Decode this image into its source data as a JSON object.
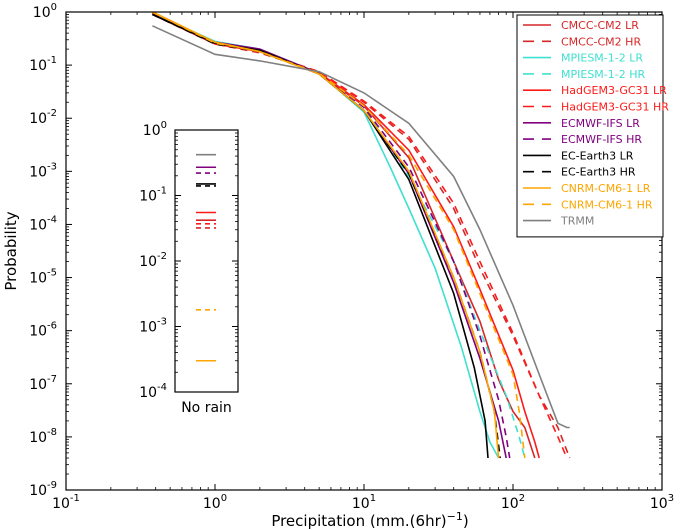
{
  "chart_data": {
    "type": "line",
    "title": "",
    "xlabel": "Precipitation (mm.(6hr)",
    "xlabel_exp": "−1",
    "xlabel_close": ")",
    "ylabel": "Probability",
    "xscale": "log",
    "yscale": "log",
    "xlim": [
      0.1,
      1000
    ],
    "ylim": [
      1e-09,
      1
    ],
    "x_ticks": [
      {
        "value": 0.1,
        "base": "10",
        "exp": "-1"
      },
      {
        "value": 1,
        "base": "10",
        "exp": "0"
      },
      {
        "value": 10,
        "base": "10",
        "exp": "1"
      },
      {
        "value": 100,
        "base": "10",
        "exp": "2"
      },
      {
        "value": 1000,
        "base": "10",
        "exp": "3"
      }
    ],
    "y_ticks": [
      {
        "value": 1,
        "base": "10",
        "exp": "0"
      },
      {
        "value": 0.1,
        "base": "10",
        "exp": "-1"
      },
      {
        "value": 0.01,
        "base": "10",
        "exp": "-2"
      },
      {
        "value": 0.001,
        "base": "10",
        "exp": "-3"
      },
      {
        "value": 0.0001,
        "base": "10",
        "exp": "-4"
      },
      {
        "value": 1e-05,
        "base": "10",
        "exp": "-5"
      },
      {
        "value": 1e-06,
        "base": "10",
        "exp": "-6"
      },
      {
        "value": 1e-07,
        "base": "10",
        "exp": "-7"
      },
      {
        "value": 1e-08,
        "base": "10",
        "exp": "-8"
      },
      {
        "value": 1e-09,
        "base": "10",
        "exp": "-9"
      }
    ],
    "legend_position": "top-right",
    "series": [
      {
        "name": "CMCC-CM2 LR",
        "color": "#d62728",
        "dash": "solid",
        "points": [
          [
            0.38,
            1.0
          ],
          [
            1,
            0.27
          ],
          [
            2,
            0.18
          ],
          [
            5,
            0.07
          ],
          [
            10,
            0.017
          ],
          [
            20,
            0.0018
          ],
          [
            40,
            2e-05
          ],
          [
            60,
            1.5e-06
          ],
          [
            80,
            1.2e-07
          ],
          [
            100,
            3e-08
          ],
          [
            120,
            1.5e-08
          ],
          [
            140,
            4e-09
          ]
        ]
      },
      {
        "name": "CMCC-CM2 HR",
        "color": "#d62728",
        "dash": "dashed",
        "points": [
          [
            0.38,
            1.0
          ],
          [
            1,
            0.25
          ],
          [
            2,
            0.17
          ],
          [
            5,
            0.075
          ],
          [
            10,
            0.02
          ],
          [
            20,
            0.004
          ],
          [
            40,
            0.0002
          ],
          [
            60,
            1.5e-05
          ],
          [
            100,
            8e-07
          ],
          [
            150,
            6e-08
          ],
          [
            200,
            1.5e-08
          ],
          [
            240,
            4e-09
          ]
        ]
      },
      {
        "name": "MPIESM-1-2 LR",
        "color": "#40e0d0",
        "dash": "solid",
        "points": [
          [
            0.38,
            0.95
          ],
          [
            1,
            0.28
          ],
          [
            2,
            0.2
          ],
          [
            5,
            0.07
          ],
          [
            10,
            0.013
          ],
          [
            15,
            0.0012
          ],
          [
            20,
            0.0002
          ],
          [
            30,
            1.5e-05
          ],
          [
            45,
            5e-07
          ],
          [
            60,
            3e-08
          ],
          [
            70,
            8e-09
          ],
          [
            80,
            4e-09
          ]
        ]
      },
      {
        "name": "MPIESM-1-2 HR",
        "color": "#40e0d0",
        "dash": "dashed",
        "points": [
          [
            0.38,
            0.9
          ],
          [
            1,
            0.26
          ],
          [
            2,
            0.19
          ],
          [
            5,
            0.07
          ],
          [
            10,
            0.016
          ],
          [
            20,
            0.0008
          ],
          [
            40,
            2e-05
          ],
          [
            60,
            1e-06
          ],
          [
            90,
            6e-08
          ],
          [
            110,
            1e-08
          ],
          [
            120,
            4e-09
          ]
        ]
      },
      {
        "name": "HadGEM3-GC31 LR",
        "color": "#ff1a1a",
        "dash": "solid",
        "points": [
          [
            0.38,
            0.9
          ],
          [
            1,
            0.25
          ],
          [
            2,
            0.18
          ],
          [
            5,
            0.072
          ],
          [
            10,
            0.018
          ],
          [
            20,
            0.0025
          ],
          [
            40,
            9e-05
          ],
          [
            60,
            6e-06
          ],
          [
            100,
            1.8e-07
          ],
          [
            120,
            3e-08
          ],
          [
            140,
            8e-09
          ],
          [
            150,
            4e-09
          ]
        ]
      },
      {
        "name": "HadGEM3-GC31 HR",
        "color": "#ff1a1a",
        "dash": "dashed",
        "points": [
          [
            0.38,
            0.95
          ],
          [
            1,
            0.26
          ],
          [
            2,
            0.18
          ],
          [
            5,
            0.075
          ],
          [
            10,
            0.021
          ],
          [
            20,
            0.0045
          ],
          [
            40,
            0.00025
          ],
          [
            60,
            2e-05
          ],
          [
            100,
            9e-07
          ],
          [
            150,
            6e-08
          ],
          [
            200,
            1e-08
          ],
          [
            230,
            4e-09
          ]
        ]
      },
      {
        "name": "ECMWF-IFS LR",
        "color": "#800080",
        "dash": "solid",
        "points": [
          [
            0.38,
            0.9
          ],
          [
            1,
            0.27
          ],
          [
            2,
            0.2
          ],
          [
            5,
            0.07
          ],
          [
            10,
            0.014
          ],
          [
            20,
            0.0009
          ],
          [
            40,
            8e-06
          ],
          [
            60,
            3e-07
          ],
          [
            80,
            2e-08
          ],
          [
            90,
            4e-09
          ]
        ]
      },
      {
        "name": "ECMWF-IFS HR",
        "color": "#800080",
        "dash": "dashed",
        "points": [
          [
            0.38,
            0.9
          ],
          [
            1,
            0.26
          ],
          [
            2,
            0.19
          ],
          [
            5,
            0.07
          ],
          [
            10,
            0.016
          ],
          [
            20,
            0.0012
          ],
          [
            40,
            2e-05
          ],
          [
            60,
            8e-07
          ],
          [
            80,
            5e-08
          ],
          [
            90,
            1e-08
          ],
          [
            95,
            4e-09
          ]
        ]
      },
      {
        "name": "EC-Earth3 LR",
        "color": "#000000",
        "dash": "solid",
        "points": [
          [
            0.38,
            0.9
          ],
          [
            1,
            0.26
          ],
          [
            2,
            0.19
          ],
          [
            5,
            0.068
          ],
          [
            10,
            0.014
          ],
          [
            20,
            0.0007
          ],
          [
            40,
            5e-06
          ],
          [
            55,
            2e-07
          ],
          [
            65,
            2e-08
          ],
          [
            68,
            4e-09
          ]
        ]
      },
      {
        "name": "EC-Earth3 HR",
        "color": "#000000",
        "dash": "dashed",
        "points": [
          [
            0.38,
            0.9
          ],
          [
            1,
            0.25
          ],
          [
            2,
            0.18
          ],
          [
            5,
            0.068
          ],
          [
            10,
            0.014
          ],
          [
            20,
            0.0009
          ],
          [
            40,
            1e-05
          ],
          [
            60,
            4e-07
          ],
          [
            75,
            3e-08
          ],
          [
            82,
            4e-09
          ]
        ]
      },
      {
        "name": "CNRM-CM6-1 LR",
        "color": "#ffa500",
        "dash": "solid",
        "points": [
          [
            0.38,
            1.0
          ],
          [
            1,
            0.27
          ],
          [
            2,
            0.18
          ],
          [
            5,
            0.068
          ],
          [
            10,
            0.014
          ],
          [
            20,
            0.001
          ],
          [
            40,
            1e-05
          ],
          [
            60,
            4e-07
          ],
          [
            75,
            3e-08
          ],
          [
            80,
            4e-09
          ]
        ]
      },
      {
        "name": "CNRM-CM6-1 HR",
        "color": "#ffa500",
        "dash": "dashed",
        "points": [
          [
            0.38,
            1.0
          ],
          [
            1,
            0.26
          ],
          [
            2,
            0.18
          ],
          [
            5,
            0.07
          ],
          [
            10,
            0.017
          ],
          [
            20,
            0.002
          ],
          [
            40,
            8e-05
          ],
          [
            60,
            5e-06
          ],
          [
            100,
            1.5e-07
          ],
          [
            110,
            3e-08
          ],
          [
            120,
            4e-09
          ]
        ]
      },
      {
        "name": "TRMM",
        "color": "#808080",
        "dash": "solid",
        "points": [
          [
            0.38,
            0.55
          ],
          [
            1,
            0.16
          ],
          [
            2,
            0.12
          ],
          [
            5,
            0.075
          ],
          [
            10,
            0.03
          ],
          [
            20,
            0.008
          ],
          [
            40,
            0.0008
          ],
          [
            60,
            8e-05
          ],
          [
            100,
            3e-06
          ],
          [
            150,
            1.5e-07
          ],
          [
            200,
            1.8e-08
          ],
          [
            230,
            1.5e-08
          ],
          [
            240,
            1.5e-08
          ]
        ]
      }
    ],
    "inset": {
      "xlabel": "No rain",
      "ylim": [
        0.0001,
        1
      ],
      "y_ticks": [
        {
          "value": 1,
          "base": "10",
          "exp": "0"
        },
        {
          "value": 0.1,
          "base": "10",
          "exp": "-1"
        },
        {
          "value": 0.01,
          "base": "10",
          "exp": "-2"
        },
        {
          "value": 0.001,
          "base": "10",
          "exp": "-3"
        },
        {
          "value": 0.0001,
          "base": "10",
          "exp": "-4"
        }
      ],
      "markers": [
        {
          "name": "TRMM",
          "color": "#808080",
          "dash": "solid",
          "value": 0.42
        },
        {
          "name": "ECMWF-IFS LR",
          "color": "#800080",
          "dash": "solid",
          "value": 0.27
        },
        {
          "name": "ECMWF-IFS HR",
          "color": "#800080",
          "dash": "dashed",
          "value": 0.22
        },
        {
          "name": "EC-Earth3 LR",
          "color": "#000000",
          "dash": "solid",
          "value": 0.15
        },
        {
          "name": "EC-Earth3 HR",
          "color": "#000000",
          "dash": "dashed",
          "value": 0.14
        },
        {
          "name": "HadGEM3-GC31 LR",
          "color": "#ff1a1a",
          "dash": "solid",
          "value": 0.055
        },
        {
          "name": "CMCC-CM2 LR",
          "color": "#d62728",
          "dash": "solid",
          "value": 0.042
        },
        {
          "name": "HadGEM3-GC31 HR",
          "color": "#ff1a1a",
          "dash": "dashed",
          "value": 0.037
        },
        {
          "name": "CMCC-CM2 HR",
          "color": "#d62728",
          "dash": "dashed",
          "value": 0.032
        },
        {
          "name": "CNRM-CM6-1 HR",
          "color": "#ffa500",
          "dash": "dashed",
          "value": 0.0018
        },
        {
          "name": "CNRM-CM6-1 LR",
          "color": "#ffa500",
          "dash": "solid",
          "value": 0.0003
        }
      ]
    }
  }
}
